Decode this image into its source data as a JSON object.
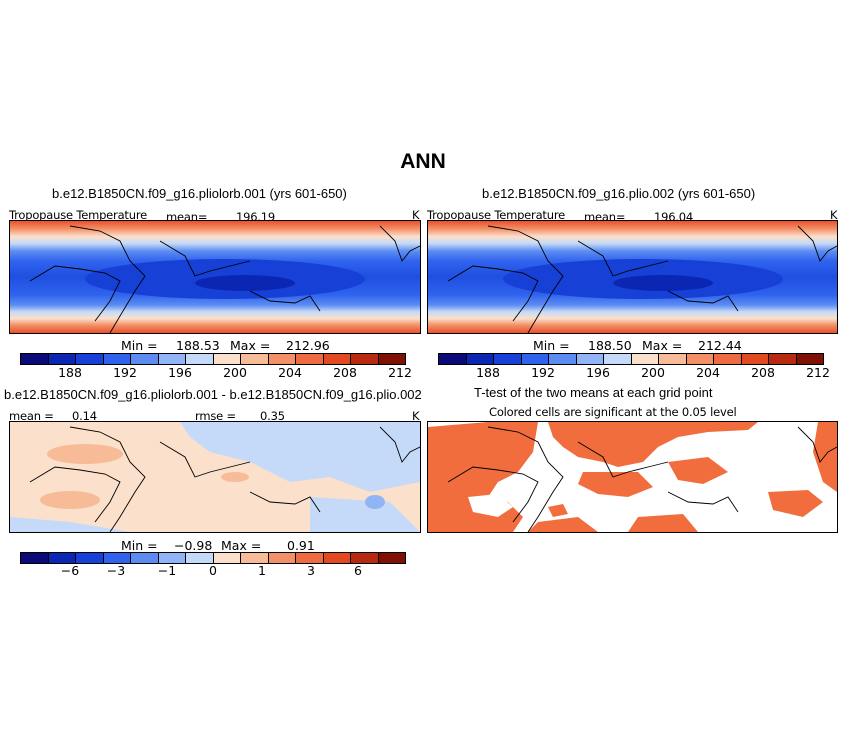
{
  "figure": {
    "title": "ANN"
  },
  "panels": {
    "p1": {
      "title": "b.e12.B1850CN.f09_g16.pliolorb.001 (yrs 601-650)",
      "left_label": "Tropopause Temperature",
      "mean_label": "mean=",
      "mean_value": "196.19",
      "units": "K",
      "min_label": "Min =",
      "min_value": "188.53",
      "max_label": "Max =",
      "max_value": "212.96"
    },
    "p2": {
      "title": "b.e12.B1850CN.f09_g16.plio.002 (yrs 601-650)",
      "left_label": "Tropopause Temperature",
      "mean_label": "mean=",
      "mean_value": "196.04",
      "units": "K",
      "min_label": "Min =",
      "min_value": "188.50",
      "max_label": "Max =",
      "max_value": "212.44"
    },
    "p3": {
      "title": "b.e12.B1850CN.f09_g16.pliolorb.001 - b.e12.B1850CN.f09_g16.plio.002",
      "mean_label": "mean =",
      "mean_value": "0.14",
      "rmse_label": "rmse =",
      "rmse_value": "0.35",
      "units": "K",
      "min_label": "Min =",
      "min_value": "−0.98",
      "max_label": "Max =",
      "max_value": "0.91"
    },
    "p4": {
      "title": "T-test of the two means at each grid point",
      "subtitle": "Colored cells are significant at the 0.05 level"
    }
  },
  "colorbars": {
    "abs": {
      "colors": [
        "#0a0a78",
        "#0c26b4",
        "#1740d6",
        "#2f63ee",
        "#5c8cf2",
        "#90b4f6",
        "#c4daf8",
        "#fbe0cc",
        "#f8bb98",
        "#f39068",
        "#ee6a40",
        "#e14a20",
        "#b82a10",
        "#7e1004"
      ],
      "labels": [
        "188",
        "192",
        "196",
        "200",
        "204",
        "208",
        "212"
      ]
    },
    "diff": {
      "colors": [
        "#0a0a78",
        "#0c26b4",
        "#1740d6",
        "#2f63ee",
        "#5c8cf2",
        "#90b4f6",
        "#c4daf8",
        "#fbe0cc",
        "#f8bb98",
        "#f39068",
        "#ee6a40",
        "#e14a20",
        "#b82a10",
        "#7e1004"
      ],
      "labels": [
        "−6",
        "−3",
        "−1",
        "0",
        "1",
        "3",
        "6"
      ]
    }
  },
  "colors": {
    "significant": "#f26d3d",
    "background": "#ffffff"
  }
}
